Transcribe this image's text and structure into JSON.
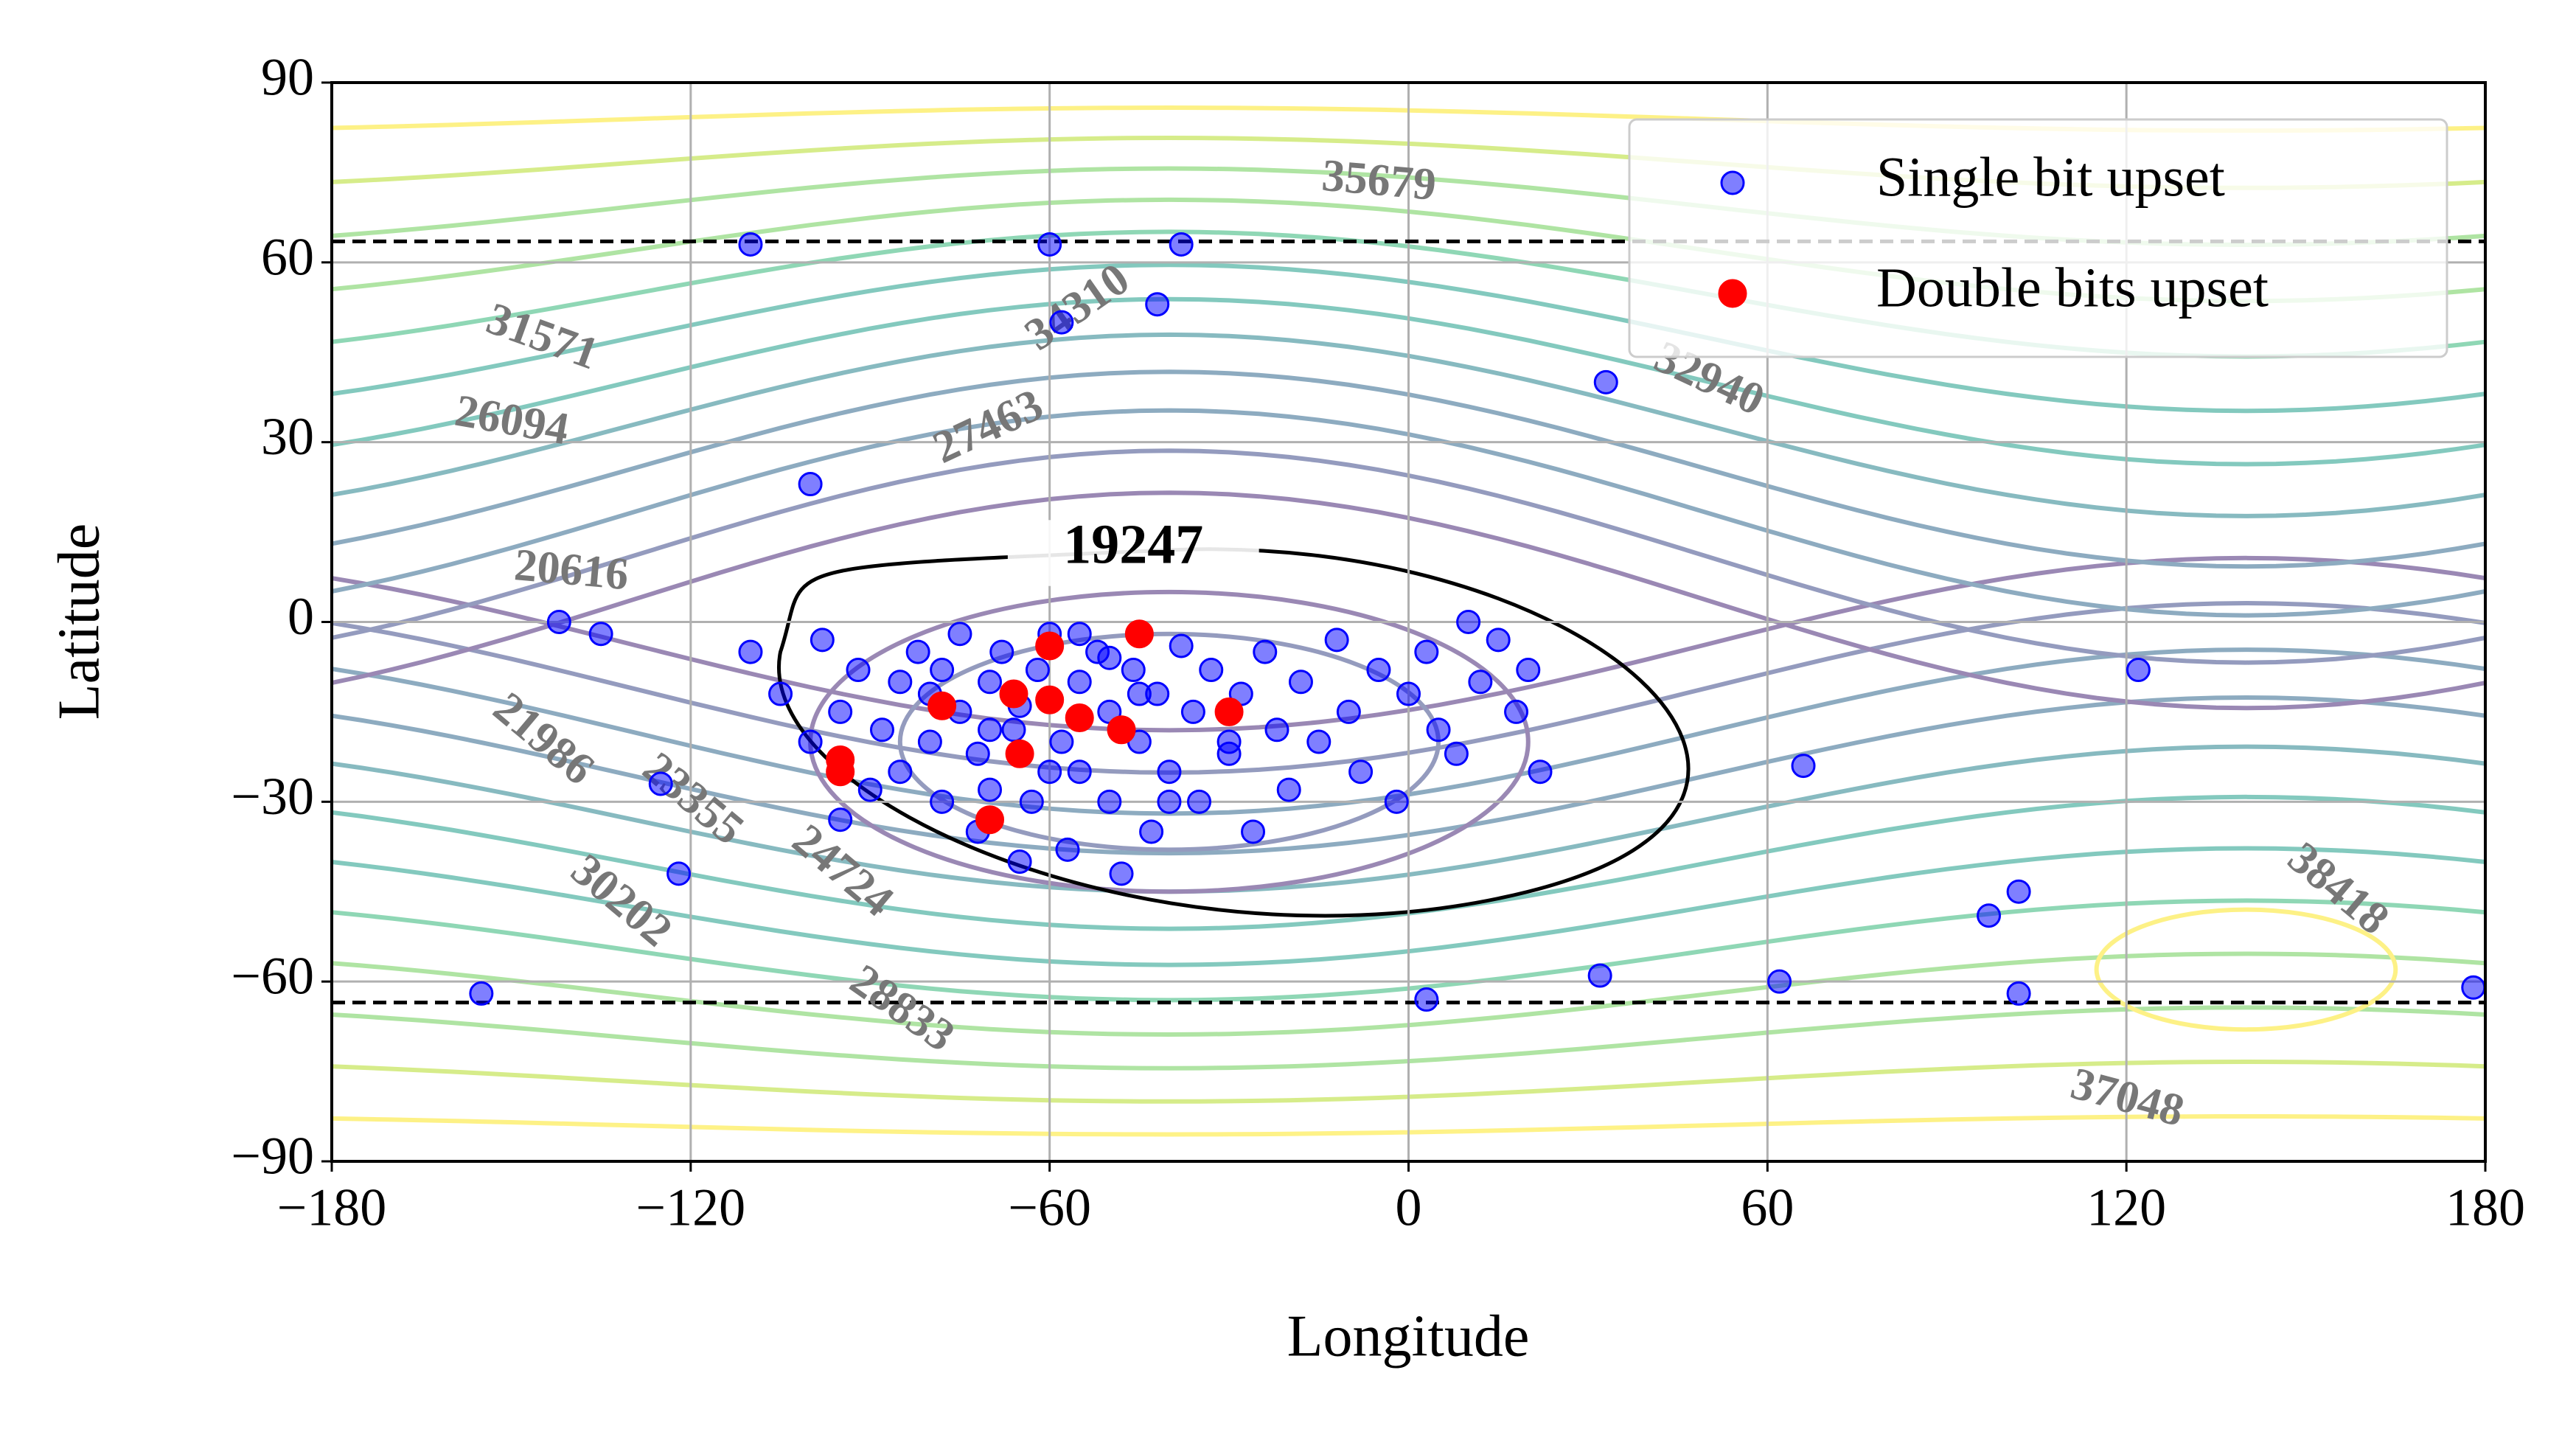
{
  "chart_data": {
    "type": "scatter",
    "xlabel": "Longitude",
    "ylabel": "Latitude",
    "xlim": [
      -180,
      180
    ],
    "ylim": [
      -90,
      90
    ],
    "xticks": [
      {
        "value": -180,
        "label": "−180"
      },
      {
        "value": -120,
        "label": "−120"
      },
      {
        "value": -60,
        "label": "−60"
      },
      0,
      60,
      120,
      180
    ],
    "yticks": [
      {
        "value": -90,
        "label": "−90"
      },
      {
        "value": -60,
        "label": "−60"
      },
      {
        "value": -30,
        "label": "−30"
      },
      0,
      30,
      60,
      90
    ],
    "grid": true,
    "legend": "upper right",
    "reference_lines": [
      63.5,
      -63.5
    ],
    "annotation": "19247",
    "contour_labels": [
      35679,
      31571,
      34310,
      26094,
      27463,
      20616,
      21986,
      23355,
      24724,
      30202,
      28833,
      32940,
      37048,
      38418
    ],
    "series": [
      {
        "name": "Single bit upset",
        "color": "#0000ff",
        "x": [
          -110,
          -105,
          -100,
          -98,
          -95,
          -92,
          -90,
          -88,
          -85,
          -85,
          -82,
          -80,
          -78,
          -78,
          -75,
          -75,
          -72,
          -72,
          -70,
          -70,
          -68,
          -66,
          -65,
          -63,
          -62,
          -60,
          -58,
          -57,
          -55,
          -55,
          -52,
          -50,
          -50,
          -48,
          -46,
          -45,
          -43,
          -42,
          -40,
          -38,
          -36,
          -35,
          -33,
          -30,
          -28,
          -26,
          -24,
          -22,
          -20,
          -18,
          -15,
          -12,
          -10,
          -8,
          -5,
          -2,
          0,
          3,
          5,
          8,
          10,
          12,
          15,
          18,
          20,
          22,
          -80,
          -70,
          -60,
          -50,
          -40,
          -30,
          -65,
          -55,
          -45,
          -110,
          -60,
          -38,
          -42,
          -58,
          33,
          -100,
          -142,
          -135,
          -122,
          -125,
          -95,
          -155,
          3,
          32,
          62,
          66,
          97,
          102,
          102,
          178,
          122
        ],
        "y": [
          -5,
          -12,
          -20,
          -3,
          -15,
          -8,
          -28,
          -18,
          -10,
          -25,
          -5,
          -20,
          -30,
          -8,
          -15,
          -2,
          -22,
          -35,
          -10,
          -28,
          -5,
          -18,
          -40,
          -30,
          -8,
          -2,
          -20,
          -38,
          -10,
          -25,
          -5,
          -30,
          -15,
          -42,
          -8,
          -20,
          -35,
          -12,
          -25,
          -4,
          -15,
          -30,
          -8,
          -22,
          -12,
          -35,
          -5,
          -18,
          -28,
          -10,
          -20,
          -3,
          -15,
          -25,
          -8,
          -30,
          -12,
          -5,
          -18,
          -22,
          0,
          -10,
          -3,
          -15,
          -8,
          -25,
          -12,
          -18,
          -25,
          -6,
          -30,
          -20,
          -14,
          -2,
          -12,
          63,
          63,
          63,
          53,
          50,
          40,
          23,
          0,
          -2,
          -42,
          -27,
          -33,
          -62,
          -63,
          -59,
          -60,
          -24,
          -49,
          -45,
          -62,
          -61,
          -8
        ]
      },
      {
        "name": "Double bits upset",
        "color": "#ff0000",
        "x": [
          -95,
          -95,
          -78,
          -66,
          -65,
          -60,
          -60,
          -55,
          -48,
          -45,
          -30,
          -70
        ],
        "y": [
          -25,
          -23,
          -14,
          -12,
          -22,
          -13,
          -4,
          -16,
          -18,
          -2,
          -15,
          -33
        ]
      }
    ]
  }
}
